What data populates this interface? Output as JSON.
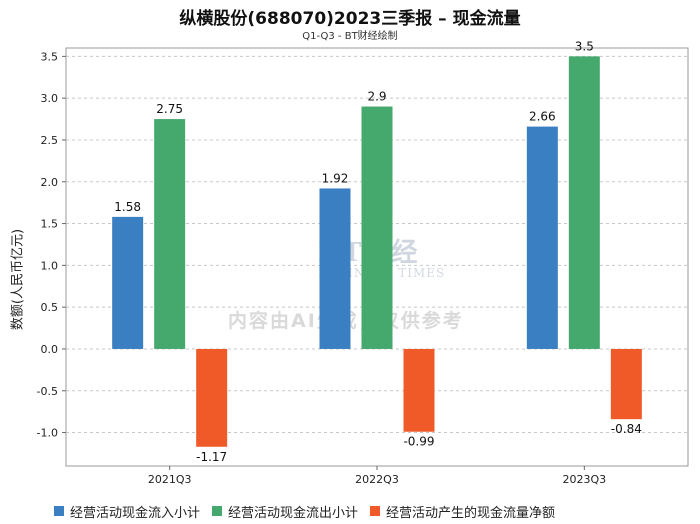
{
  "chart_data": {
    "type": "bar",
    "title": "纵横股份(688070)2023三季报 – 现金流量",
    "subtitle": "Q1-Q3 - BT财经绘制",
    "xlabel": "",
    "ylabel": "数额(人民币亿元)",
    "categories": [
      "2021Q3",
      "2022Q3",
      "2023Q3"
    ],
    "ylim": [
      -1.4,
      3.6
    ],
    "yticks": [
      3.5,
      3.0,
      2.5,
      2.0,
      1.5,
      1.0,
      0.5,
      0.0,
      -0.5,
      -1.0
    ],
    "ytick_labels": [
      "3.5",
      "3.0",
      "2.5",
      "2.0",
      "1.5",
      "1.0",
      "0.5",
      "0.0",
      "-0.5",
      "-1.0"
    ],
    "grid": true,
    "legend_position": "bottom",
    "series": [
      {
        "name": "经营活动现金流入小计",
        "color": "#3a7fc1",
        "values": [
          1.58,
          1.92,
          2.66
        ],
        "labels": [
          "1.58",
          "1.92",
          "2.66"
        ]
      },
      {
        "name": "经营活动现金流出小计",
        "color": "#45a96e",
        "values": [
          2.75,
          2.9,
          3.5
        ],
        "labels": [
          "2.75",
          "2.9",
          "3.5"
        ]
      },
      {
        "name": "经营活动产生的现金流量净额",
        "color": "#f05a28",
        "values": [
          -1.17,
          -0.99,
          -0.84
        ],
        "labels": [
          "-1.17",
          "-0.99",
          "-0.84"
        ]
      }
    ]
  },
  "watermark": {
    "brand": "BT财经",
    "brand_en": "BUSINESS TIMES",
    "notice": "内容由AI生成，仅供参考"
  }
}
